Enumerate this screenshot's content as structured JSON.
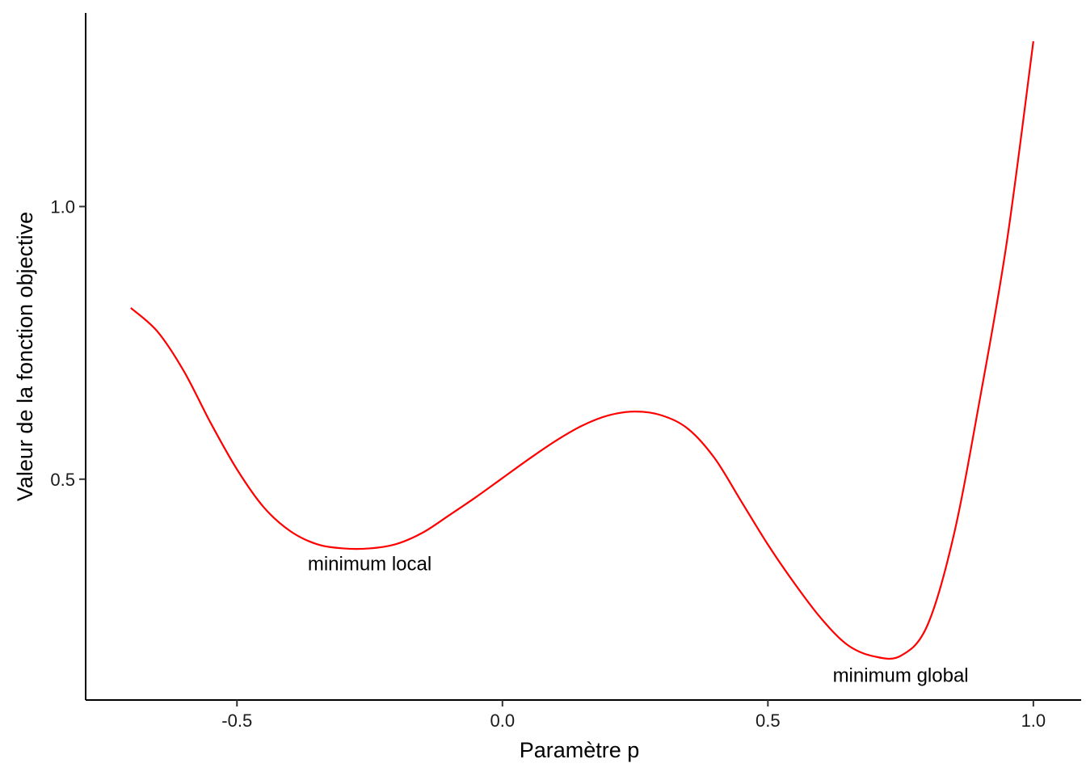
{
  "chart_data": {
    "type": "line",
    "title": "",
    "xlabel": "Paramètre p",
    "ylabel": "Valeur de la fonction objective",
    "xlim": [
      -0.785,
      1.09
    ],
    "ylim": [
      0.095,
      1.355
    ],
    "x_ticks": [
      -0.5,
      0.0,
      0.5,
      1.0
    ],
    "x_tick_labels": [
      "-0.5",
      "0.0",
      "0.5",
      "1.0"
    ],
    "y_ticks": [
      0.5,
      1.0
    ],
    "y_tick_labels": [
      "0.5",
      "1.0"
    ],
    "grid": false,
    "legend": "none",
    "series": [
      {
        "color": "#ff0000",
        "x": [
          -0.7,
          -0.65,
          -0.6,
          -0.55,
          -0.5,
          -0.45,
          -0.4,
          -0.35,
          -0.3,
          -0.25,
          -0.2,
          -0.15,
          -0.1,
          -0.05,
          0.0,
          0.05,
          0.1,
          0.15,
          0.2,
          0.25,
          0.3,
          0.35,
          0.4,
          0.45,
          0.5,
          0.55,
          0.6,
          0.65,
          0.7,
          0.75,
          0.8,
          0.85,
          0.9,
          0.95,
          1.0
        ],
        "y": [
          0.814,
          0.771,
          0.698,
          0.604,
          0.518,
          0.449,
          0.405,
          0.381,
          0.373,
          0.373,
          0.381,
          0.402,
          0.434,
          0.467,
          0.502,
          0.537,
          0.57,
          0.598,
          0.617,
          0.624,
          0.617,
          0.592,
          0.538,
          0.459,
          0.38,
          0.309,
          0.245,
          0.196,
          0.175,
          0.176,
          0.231,
          0.397,
          0.651,
          0.935,
          1.303
        ]
      }
    ],
    "annotations": [
      {
        "text": "minimum local",
        "x": -0.25,
        "y": 0.345
      },
      {
        "text": "minimum global",
        "x": 0.75,
        "y": 0.14
      }
    ]
  }
}
